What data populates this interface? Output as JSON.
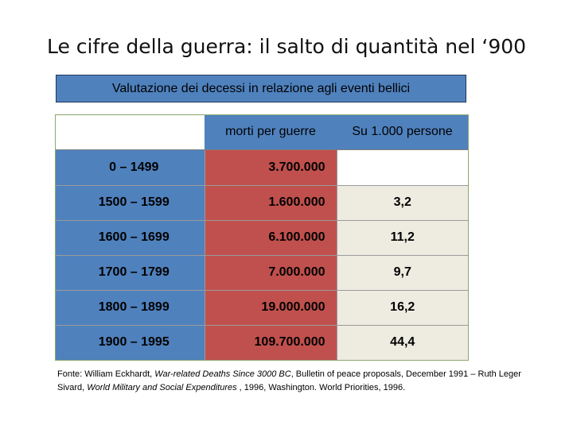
{
  "slide": {
    "title": "Le cifre della guerra: il salto di quantità nel ‘900",
    "subtitle": "Valutazione dei decessi in relazione agli eventi bellici"
  },
  "table": {
    "headers": [
      "",
      "morti per guerre",
      "Su 1.000 persone"
    ],
    "rows": [
      {
        "period": "0 – 1499",
        "deaths": "3.700.000",
        "ratio": ""
      },
      {
        "period": "1500 – 1599",
        "deaths": "1.600.000",
        "ratio": "3,2"
      },
      {
        "period": "1600 – 1699",
        "deaths": "6.100.000",
        "ratio": "11,2"
      },
      {
        "period": "1700 – 1799",
        "deaths": "7.000.000",
        "ratio": "9,7"
      },
      {
        "period": "1800 – 1899",
        "deaths": "19.000.000",
        "ratio": "16,2"
      },
      {
        "period": "1900 – 1995",
        "deaths": "109.700.000",
        "ratio": "44,4"
      }
    ]
  },
  "source": {
    "prefix": "Fonte: William Eckhardt, ",
    "work1": "War-related Deaths Since 3000 BC",
    "mid": ", Bulletin of peace proposals, December 1991 – Ruth Leger Sivard, ",
    "work2": "World Military and Social Expenditures",
    "suffix": " , 1996, Washington. World Priorities, 1996."
  },
  "colors": {
    "blue": "#4f81bd",
    "red": "#c0504d",
    "beige": "#eeece1"
  }
}
